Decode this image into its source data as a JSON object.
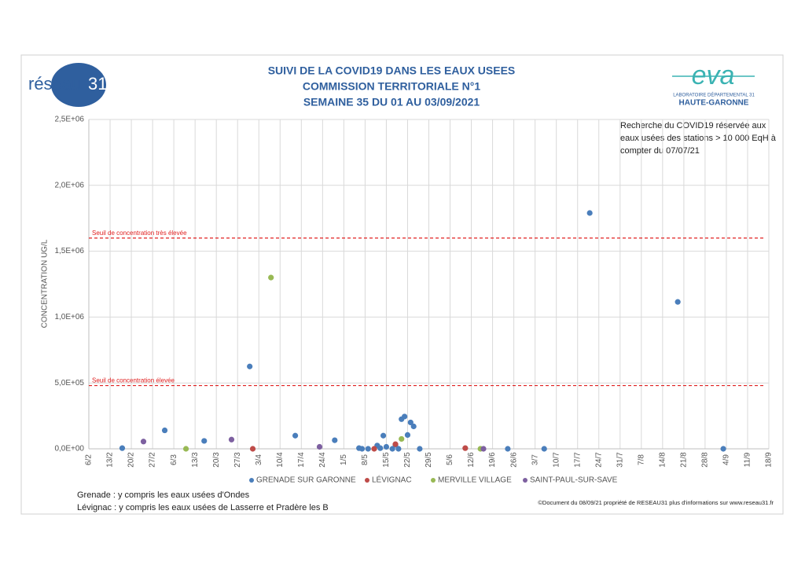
{
  "chart_data": {
    "type": "scatter",
    "title_lines": [
      "SUIVI DE LA COVID19 DANS LES EAUX USEES",
      "COMMISSION TERRITORIALE N°1",
      "SEMAINE 35 DU 01 AU 03/09/2021"
    ],
    "logo_left": {
      "text": "réseau",
      "number": "31"
    },
    "logo_right": {
      "text": "eva",
      "line1": "LABORATOIRE DÉPARTEMENTAL 31",
      "line2": "HAUTE-GARONNE"
    },
    "y_label": "CONCENTRATION UG/L",
    "annotation": [
      "Recherche du COVID19 réservée aux",
      "eaux usées des stations > 10 000 EqH à",
      "compter du 07/07/21"
    ],
    "thresholds": [
      {
        "label": "Seuil de concentration très élevée",
        "value": 1600000,
        "color": "#e02020"
      },
      {
        "label": "Seuil de concentration élevée",
        "value": 480000,
        "color": "#e02020"
      }
    ],
    "notes": [
      "Grenade : y compris les eaux usées d'Ondes",
      "Lévignac : y compris les eaux usées de Lasserre et Pradère les B"
    ],
    "copyright": "©Document du 08/09/21 propriété de RESEAU31 plus d'informations sur www.reseau31.fr",
    "xlim": [
      37,
      261
    ],
    "xticks": [
      {
        "value": 37,
        "label": "6/2"
      },
      {
        "value": 44,
        "label": "13/2"
      },
      {
        "value": 51,
        "label": "20/2"
      },
      {
        "value": 58,
        "label": "27/2"
      },
      {
        "value": 65,
        "label": "6/3"
      },
      {
        "value": 72,
        "label": "13/3"
      },
      {
        "value": 79,
        "label": "20/3"
      },
      {
        "value": 86,
        "label": "27/3"
      },
      {
        "value": 93,
        "label": "3/4"
      },
      {
        "value": 100,
        "label": "10/4"
      },
      {
        "value": 107,
        "label": "17/4"
      },
      {
        "value": 114,
        "label": "24/4"
      },
      {
        "value": 121,
        "label": "1/5"
      },
      {
        "value": 128,
        "label": "8/5"
      },
      {
        "value": 135,
        "label": "15/5"
      },
      {
        "value": 142,
        "label": "22/5"
      },
      {
        "value": 149,
        "label": "29/5"
      },
      {
        "value": 156,
        "label": "5/6"
      },
      {
        "value": 163,
        "label": "12/6"
      },
      {
        "value": 170,
        "label": "19/6"
      },
      {
        "value": 177,
        "label": "26/6"
      },
      {
        "value": 184,
        "label": "3/7"
      },
      {
        "value": 191,
        "label": "10/7"
      },
      {
        "value": 198,
        "label": "17/7"
      },
      {
        "value": 205,
        "label": "24/7"
      },
      {
        "value": 212,
        "label": "31/7"
      },
      {
        "value": 219,
        "label": "7/8"
      },
      {
        "value": 226,
        "label": "14/8"
      },
      {
        "value": 233,
        "label": "21/8"
      },
      {
        "value": 240,
        "label": "28/8"
      },
      {
        "value": 247,
        "label": "4/9"
      },
      {
        "value": 254,
        "label": "11/9"
      },
      {
        "value": 261,
        "label": "18/9"
      }
    ],
    "ylim": [
      0,
      2500000
    ],
    "yticks": [
      {
        "value": 0,
        "label": "0,0E+00"
      },
      {
        "value": 500000,
        "label": "5,0E+05"
      },
      {
        "value": 1000000,
        "label": "1,0E+06"
      },
      {
        "value": 1500000,
        "label": "1,5E+06"
      },
      {
        "value": 2000000,
        "label": "2,0E+06"
      },
      {
        "value": 2500000,
        "label": "2,5E+06"
      }
    ],
    "grid": true,
    "series": [
      {
        "name": "GRENADE SUR GARONNE",
        "color": "#4a7ebb",
        "x": [
          48,
          62,
          75,
          90,
          105,
          118,
          126,
          127,
          129,
          132,
          133,
          134,
          135,
          137,
          138,
          139,
          140,
          141,
          142,
          143,
          144,
          146,
          175,
          187,
          202,
          231,
          246
        ],
        "values": [
          5000,
          140000,
          60000,
          625000,
          100000,
          65000,
          5000,
          0,
          0,
          25000,
          5000,
          100000,
          15000,
          0,
          30000,
          0,
          225000,
          245000,
          105000,
          200000,
          170000,
          0,
          0,
          0,
          1790000,
          1115000,
          0
        ]
      },
      {
        "name": "LÉVIGNAC",
        "color": "#be4b48",
        "x": [
          91,
          131,
          138,
          161
        ],
        "values": [
          0,
          0,
          35000,
          5000
        ]
      },
      {
        "name": "MERVILLE VILLAGE",
        "color": "#98b954",
        "x": [
          69,
          97,
          140,
          166
        ],
        "values": [
          0,
          1300000,
          75000,
          0
        ]
      },
      {
        "name": "SAINT-PAUL-SUR-SAVE",
        "color": "#7d60a0",
        "x": [
          55,
          84,
          113,
          167
        ],
        "values": [
          55000,
          70000,
          15000,
          0
        ]
      }
    ]
  }
}
